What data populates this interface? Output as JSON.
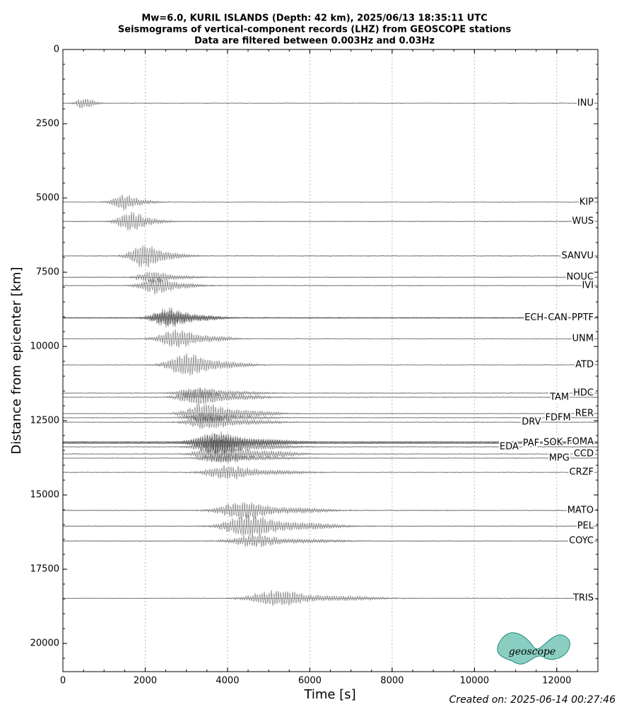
{
  "chart_data": {
    "type": "seismogram",
    "title": [
      "Mw=6.0, KURIL ISLANDS (Depth: 42 km), 2025/06/13 18:35:11 UTC",
      "Seismograms of vertical-component records (LHZ) from GEOSCOPE stations",
      "Data are filtered between 0.003Hz and 0.03Hz"
    ],
    "x_label": "Time [s]",
    "y_label": "Distance from epicenter [km]",
    "categories": [
      "INU",
      "KIP",
      "WUS",
      "SANVU",
      "NOUC",
      "IVI",
      "PPTF",
      "CAN",
      "ECH",
      "UNM",
      "ATD",
      "HDC",
      "TAM",
      "RER",
      "FDFM",
      "DRV",
      "FOMA",
      "SOK",
      "PAF",
      "EDA",
      "CCD",
      "MPG",
      "CRZF",
      "MATO",
      "PEL",
      "COYC",
      "TRIS"
    ],
    "values": [
      1810,
      5140,
      5790,
      6950,
      7670,
      7950,
      9040,
      9030,
      9040,
      9740,
      10620,
      11570,
      11710,
      12260,
      12400,
      12550,
      13210,
      13240,
      13260,
      13380,
      13620,
      13760,
      14240,
      15520,
      16050,
      16550,
      18480
    ],
    "color": "#444444",
    "xlim": [
      0,
      13000
    ],
    "xticks": [
      0,
      2000,
      4000,
      6000,
      8000,
      10000,
      12000
    ],
    "ylim": [
      0,
      20950
    ],
    "yticks": [
      0,
      2500,
      5000,
      7500,
      10000,
      12500,
      15000,
      17500,
      20000
    ],
    "y_inverted": true,
    "grid": "x",
    "logo_text": "geoscope",
    "footer": "Created on: 2025-06-14 00:27:46"
  }
}
